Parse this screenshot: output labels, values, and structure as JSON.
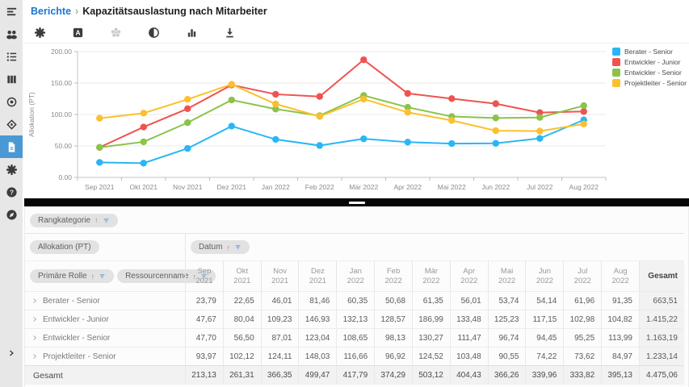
{
  "header": {
    "breadcrumb": "Berichte",
    "separator": "›",
    "title": "Kapazitätsauslastung nach Mitarbeiter"
  },
  "sidebar": {
    "items": [
      "menu",
      "users",
      "list",
      "columns",
      "target",
      "widget",
      "report",
      "settings",
      "help",
      "explore"
    ],
    "active_item": "report"
  },
  "toolbar": {
    "icons": [
      "settings",
      "text-format",
      "color-palette",
      "donut-chart",
      "bar-chart",
      "download"
    ],
    "disabled_icon": "color-palette"
  },
  "chart_data": {
    "type": "line",
    "ylabel": "Allokation (PT)",
    "ylim": [
      0,
      200
    ],
    "yticks": [
      "0.00",
      "50.00",
      "100.00",
      "150.00",
      "200.00"
    ],
    "grid": true,
    "legend_position": "right",
    "categories": [
      "Sep 2021",
      "Okt 2021",
      "Nov 2021",
      "Dez 2021",
      "Jan 2022",
      "Feb 2022",
      "Mär 2022",
      "Apr 2022",
      "Mai 2022",
      "Jun 2022",
      "Jul 2022",
      "Aug 2022"
    ],
    "series": [
      {
        "name": "Berater - Senior",
        "color": "#29b6f6",
        "values": [
          23.79,
          22.65,
          46.01,
          81.46,
          60.35,
          50.68,
          61.35,
          56.01,
          53.74,
          54.14,
          61.96,
          91.35
        ]
      },
      {
        "name": "Entwickler - Junior",
        "color": "#ef5350",
        "values": [
          47.67,
          80.04,
          109.23,
          146.93,
          132.13,
          128.57,
          186.99,
          133.48,
          125.23,
          117.15,
          102.98,
          104.82
        ]
      },
      {
        "name": "Entwickler - Senior",
        "color": "#8bc34a",
        "values": [
          47.7,
          56.5,
          87.01,
          123.04,
          108.65,
          98.13,
          130.27,
          111.47,
          96.74,
          94.45,
          95.25,
          113.99
        ]
      },
      {
        "name": "Projektleiter - Senior",
        "color": "#fbc02d",
        "values": [
          93.97,
          102.12,
          124.11,
          148.03,
          116.66,
          96.92,
          124.52,
          103.48,
          90.55,
          74.22,
          73.62,
          84.97
        ]
      }
    ]
  },
  "table": {
    "pills": {
      "rangkategorie": "Rangkategorie",
      "allokation": "Allokation (PT)",
      "datum": "Datum",
      "primaere_rolle": "Primäre Rolle",
      "ressourcenname": "Ressourcenname",
      "sort_glyph": "↑"
    },
    "columns": [
      "Sep 2021",
      "Okt 2021",
      "Nov 2021",
      "Dez 2021",
      "Jan 2022",
      "Feb 2022",
      "Mär 2022",
      "Apr 2022",
      "Mai 2022",
      "Jun 2022",
      "Jul 2022",
      "Aug 2022"
    ],
    "total_column": "Gesamt",
    "rows": [
      {
        "label": "Berater - Senior",
        "values": [
          "23,79",
          "22,65",
          "46,01",
          "81,46",
          "60,35",
          "50,68",
          "61,35",
          "56,01",
          "53,74",
          "54,14",
          "61,96",
          "91,35"
        ],
        "total": "663,51"
      },
      {
        "label": "Entwickler - Junior",
        "values": [
          "47,67",
          "80,04",
          "109,23",
          "146,93",
          "132,13",
          "128,57",
          "186,99",
          "133,48",
          "125,23",
          "117,15",
          "102,98",
          "104,82"
        ],
        "total": "1.415,22"
      },
      {
        "label": "Entwickler - Senior",
        "values": [
          "47,70",
          "56,50",
          "87,01",
          "123,04",
          "108,65",
          "98,13",
          "130,27",
          "111,47",
          "96,74",
          "94,45",
          "95,25",
          "113,99"
        ],
        "total": "1.163,19"
      },
      {
        "label": "Projektleiter - Senior",
        "values": [
          "93,97",
          "102,12",
          "124,11",
          "148,03",
          "116,66",
          "96,92",
          "124,52",
          "103,48",
          "90,55",
          "74,22",
          "73,62",
          "84,97"
        ],
        "total": "1.233,14"
      }
    ],
    "total_row": {
      "label": "Gesamt",
      "values": [
        "213,13",
        "261,31",
        "366,35",
        "499,47",
        "417,79",
        "374,29",
        "503,12",
        "404,43",
        "366,26",
        "339,96",
        "333,82",
        "395,13"
      ],
      "total": "4.475,06"
    }
  }
}
